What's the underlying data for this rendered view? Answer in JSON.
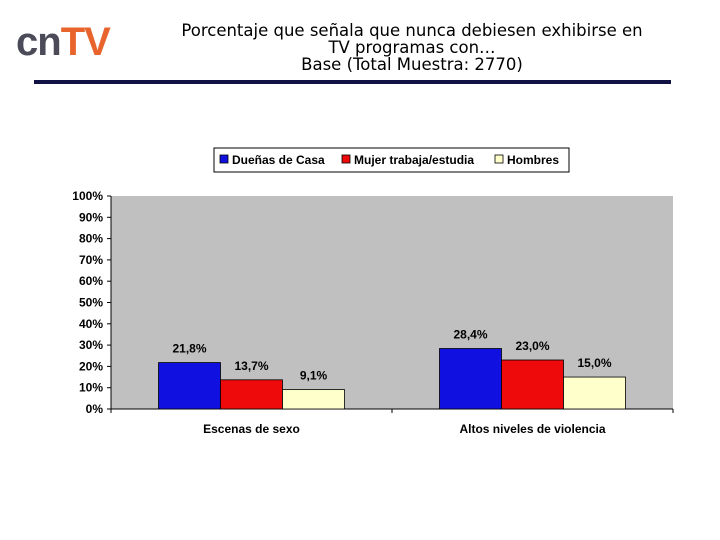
{
  "logo": {
    "part1": "cn",
    "part2": "TV",
    "color1": "#4a4a58",
    "color2": "#e8642c"
  },
  "header": {
    "title_line1": "Porcentaje que señala que nunca debiesen exhibirse en",
    "title_line2": "TV programas con…",
    "title_line3": "Base (Total Muestra: 2770)"
  },
  "chart_data": {
    "type": "bar",
    "title": "Porcentaje que señala que nunca debiesen exhibirse en TV programas con… Base (Total Muestra: 2770)",
    "categories": [
      "Escenas de sexo",
      "Altos niveles de violencia"
    ],
    "series": [
      {
        "name": "Dueñas de Casa",
        "values": [
          21.8,
          28.4
        ],
        "labels": [
          "21,8%",
          "28,4%"
        ],
        "color": "#1010e0"
      },
      {
        "name": "Mujer trabaja/estudia",
        "values": [
          13.7,
          23.0
        ],
        "labels": [
          "13,7%",
          "23,0%"
        ],
        "color": "#ee0a0a"
      },
      {
        "name": "Hombres",
        "values": [
          9.1,
          15.0
        ],
        "labels": [
          "9,1%",
          "15,0%"
        ],
        "color": "#ffffcc"
      }
    ],
    "y_ticks": [
      "0%",
      "10%",
      "20%",
      "30%",
      "40%",
      "50%",
      "60%",
      "70%",
      "80%",
      "90%",
      "100%"
    ],
    "ylim": [
      0,
      100
    ],
    "xlabel": "",
    "ylabel": "",
    "legend_position": "top",
    "plot_background": "#c0c0c0",
    "grid": false
  }
}
